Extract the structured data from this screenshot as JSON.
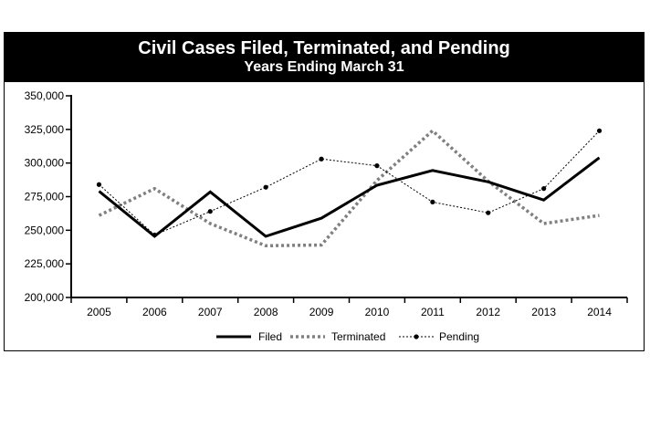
{
  "chart_data": {
    "type": "line",
    "title": "Civil Cases Filed, Terminated, and Pending",
    "subtitle": "Years Ending March 31",
    "xlabel": "",
    "ylabel": "",
    "categories": [
      "2005",
      "2006",
      "2007",
      "2008",
      "2009",
      "2010",
      "2011",
      "2012",
      "2013",
      "2014"
    ],
    "ylim": [
      200000,
      350000
    ],
    "yticks": [
      200000,
      225000,
      250000,
      275000,
      300000,
      325000,
      350000
    ],
    "ytick_labels": [
      "200,000",
      "225,000",
      "250,000",
      "275,000",
      "300,000",
      "325,000",
      "350,000"
    ],
    "grid": false,
    "legend_position": "bottom",
    "series": [
      {
        "name": "Filed",
        "style": "solid",
        "color": "#000000",
        "values": [
          279000,
          245500,
          278500,
          245500,
          259000,
          283500,
          294500,
          286000,
          272500,
          304000
        ]
      },
      {
        "name": "Terminated",
        "style": "dotted",
        "color": "#808080",
        "values": [
          261000,
          281000,
          255000,
          238500,
          239000,
          287000,
          324000,
          286500,
          255000,
          261000
        ]
      },
      {
        "name": "Pending",
        "style": "dashed-markers",
        "color": "#000000",
        "values": [
          284000,
          246500,
          264000,
          282000,
          303000,
          298000,
          271000,
          263000,
          281000,
          324000
        ]
      }
    ]
  }
}
